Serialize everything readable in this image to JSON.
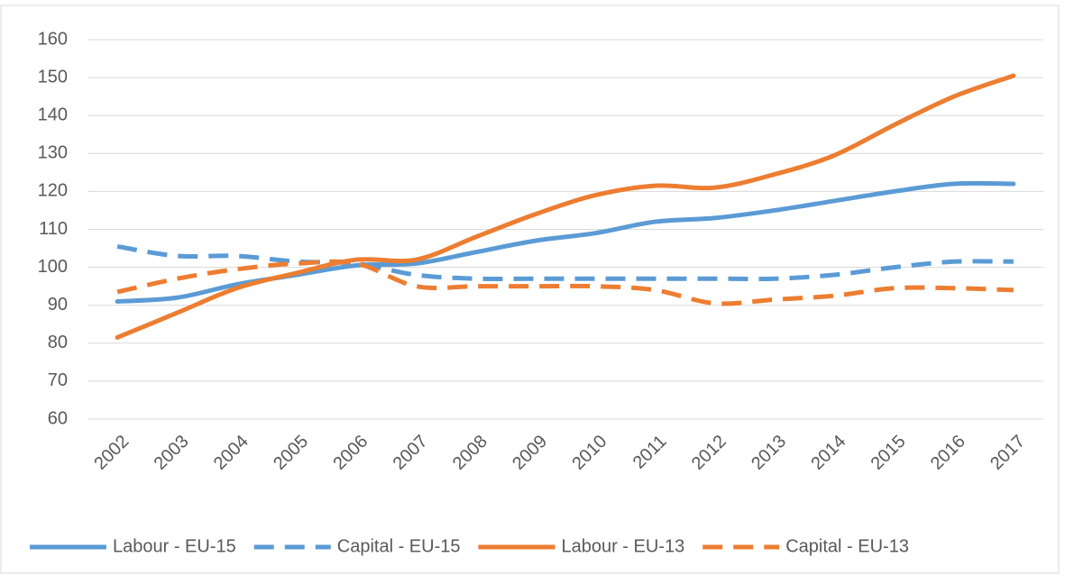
{
  "chart_data": {
    "type": "line",
    "categories": [
      "2002",
      "2003",
      "2004",
      "2005",
      "2006",
      "2007",
      "2008",
      "2009",
      "2010",
      "2011",
      "2012",
      "2013",
      "2014",
      "2015",
      "2016",
      "2017"
    ],
    "series": [
      {
        "name": "Labour - EU-15",
        "color": "#5b9bd5",
        "dashed": false,
        "values": [
          91,
          92,
          95.5,
          98,
          100.5,
          101,
          104,
          107,
          109,
          112,
          113,
          115,
          117.5,
          120,
          122,
          122
        ]
      },
      {
        "name": "Capital - EU-15",
        "color": "#5b9bd5",
        "dashed": true,
        "values": [
          105.5,
          103,
          103,
          101.5,
          101,
          98,
          97,
          97,
          97,
          97,
          97,
          97,
          98,
          100,
          101.5,
          101.5
        ]
      },
      {
        "name": "Labour - EU-13",
        "color": "#ed7d31",
        "dashed": false,
        "values": [
          81.5,
          88,
          94.5,
          98.5,
          102,
          102,
          108,
          114,
          119,
          121.5,
          121,
          124.5,
          129.5,
          137.5,
          145,
          150.5
        ]
      },
      {
        "name": "Capital - EU-13",
        "color": "#ed7d31",
        "dashed": true,
        "values": [
          93.5,
          97,
          99.5,
          101,
          101,
          95,
          95,
          95,
          95,
          94,
          90.5,
          91.5,
          92.5,
          94.5,
          94.5,
          94
        ]
      }
    ],
    "ylim": [
      60,
      160
    ],
    "yticks": [
      60,
      70,
      80,
      90,
      100,
      110,
      120,
      130,
      140,
      150,
      160
    ],
    "grid": true,
    "legend": "bottom"
  }
}
